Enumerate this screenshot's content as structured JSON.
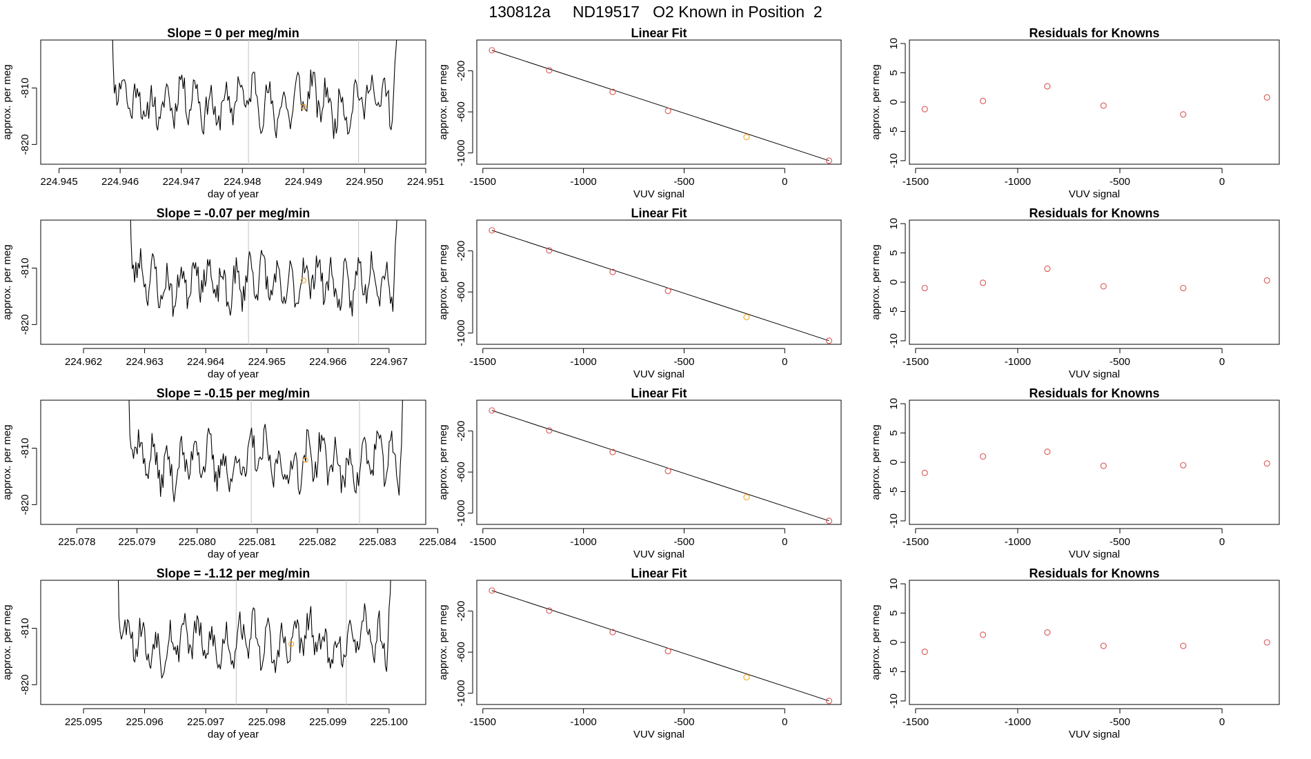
{
  "figure": {
    "suptitle": "130812a     ND19517   O2 Known in Position  2"
  },
  "colors": {
    "line": "#000000",
    "highlight": "#f5a623",
    "residual": "#d9534f",
    "vline": "#cccccc"
  },
  "chart_data": [
    {
      "row": 1,
      "type": "line",
      "title": "Slope =  0  per meg/min",
      "xlabel": "day of year",
      "ylabel": "approx. per meg",
      "xlim": [
        224.9447,
        224.951
      ],
      "ylim": [
        -823.5,
        -801.5
      ],
      "xticks": [
        "224.945",
        "224.946",
        "224.947",
        "224.948",
        "224.949",
        "224.950",
        "224.951"
      ],
      "xtick_values": [
        224.945,
        224.946,
        224.947,
        224.948,
        224.949,
        224.95,
        224.951
      ],
      "yticks": [
        "-810",
        "-820"
      ],
      "ytick_values": [
        -810,
        -820
      ],
      "trace_start": 224.9458,
      "trace_end": 224.9506,
      "seed": 11,
      "vlines": [
        224.9481,
        224.9499
      ],
      "highlight_point": {
        "x": 224.949,
        "y": -813.3
      }
    },
    {
      "row": 2,
      "type": "line",
      "title": "Slope =  -0.07  per meg/min",
      "xlabel": "day of year",
      "ylabel": "approx. per meg",
      "xlim": [
        224.9613,
        224.9676
      ],
      "ylim": [
        -823.5,
        -801.5
      ],
      "xticks": [
        "224.962",
        "224.963",
        "224.964",
        "224.965",
        "224.966",
        "224.967"
      ],
      "xtick_values": [
        224.962,
        224.963,
        224.964,
        224.965,
        224.966,
        224.967
      ],
      "yticks": [
        "-810",
        "-820"
      ],
      "ytick_values": [
        -810,
        -820
      ],
      "trace_start": 224.9627,
      "trace_end": 224.9672,
      "seed": 23,
      "vlines": [
        224.9647,
        224.9665
      ],
      "highlight_point": {
        "x": 224.9656,
        "y": -812.2
      }
    },
    {
      "row": 3,
      "type": "line",
      "title": "Slope =  -0.15  per meg/min",
      "xlabel": "day of year",
      "ylabel": "approx. per meg",
      "xlim": [
        225.0774,
        225.0838
      ],
      "ylim": [
        -823.5,
        -801.5
      ],
      "xticks": [
        "225.078",
        "225.079",
        "225.080",
        "225.081",
        "225.082",
        "225.083",
        "225.084"
      ],
      "xtick_values": [
        225.078,
        225.079,
        225.08,
        225.081,
        225.082,
        225.083,
        225.084
      ],
      "yticks": [
        "-810",
        "-820"
      ],
      "ytick_values": [
        -810,
        -820
      ],
      "trace_start": 225.0788,
      "trace_end": 225.0835,
      "seed": 37,
      "vlines": [
        225.0809,
        225.0827
      ],
      "highlight_point": {
        "x": 225.0818,
        "y": -812.1
      }
    },
    {
      "row": 4,
      "type": "line",
      "title": "Slope =  -1.12  per meg/min",
      "xlabel": "day of year",
      "ylabel": "approx. per meg",
      "xlim": [
        225.0943,
        225.1006
      ],
      "ylim": [
        -823.5,
        -801.5
      ],
      "xticks": [
        "225.095",
        "225.096",
        "225.097",
        "225.098",
        "225.099",
        "225.100"
      ],
      "xtick_values": [
        225.095,
        225.096,
        225.097,
        225.098,
        225.099,
        225.1
      ],
      "yticks": [
        "-810",
        "-820"
      ],
      "ytick_values": [
        -810,
        -820
      ],
      "trace_start": 225.0955,
      "trace_end": 225.1001,
      "seed": 53,
      "vlines": [
        225.0975,
        225.0993
      ],
      "highlight_point": {
        "x": 225.0984,
        "y": -812.8
      }
    },
    {
      "type": "scatter",
      "subtype": "linear_fit",
      "title": "Linear Fit",
      "xlabel": "VUV signal",
      "ylabel": "approx. per meg",
      "xlim": [
        -1530,
        280
      ],
      "ylim": [
        -1110,
        100
      ],
      "xticks": [
        "-1500",
        "-1000",
        "-500",
        "0"
      ],
      "xtick_values": [
        -1500,
        -1000,
        -500,
        0
      ],
      "yticks": [
        "-200",
        "-600",
        "-1000"
      ],
      "ytick_values": [
        -200,
        -600,
        -1000
      ],
      "x": [
        -1455,
        -1170,
        -855,
        -580,
        -190,
        220
      ],
      "y": [
        0,
        -195,
        -405,
        -590,
        -845,
        -1075
      ],
      "highlight_index": 4,
      "fit_line": {
        "x": [
          -1455,
          220
        ],
        "y": [
          0,
          -1075
        ]
      }
    },
    {
      "type": "scatter",
      "subtype": "residuals",
      "title": "Residuals for Knowns",
      "xlabel": "VUV signal",
      "ylabel": "approx. per meg",
      "xlim": [
        -1530,
        280
      ],
      "ylim": [
        -10.6,
        10.6
      ],
      "xticks": [
        "-1500",
        "-1000",
        "-500",
        "0"
      ],
      "xtick_values": [
        -1500,
        -1000,
        -500,
        0
      ],
      "yticks": [
        "10",
        "5",
        "0",
        "-5",
        "-10"
      ],
      "ytick_values": [
        10,
        5,
        0,
        -5,
        -10
      ],
      "x": [
        -1455,
        -1170,
        -855,
        -580,
        -190,
        220
      ],
      "series": [
        {
          "row": 1,
          "values": [
            -1.2,
            0.2,
            2.7,
            -0.6,
            -2.1,
            0.8
          ]
        },
        {
          "row": 2,
          "values": [
            -1.0,
            -0.1,
            2.3,
            -0.7,
            -1.0,
            0.3
          ]
        },
        {
          "row": 3,
          "values": [
            -1.8,
            1.0,
            1.8,
            -0.6,
            -0.5,
            -0.2
          ]
        },
        {
          "row": 4,
          "values": [
            -1.6,
            1.3,
            1.7,
            -0.6,
            -0.6,
            0.0
          ]
        }
      ]
    }
  ]
}
